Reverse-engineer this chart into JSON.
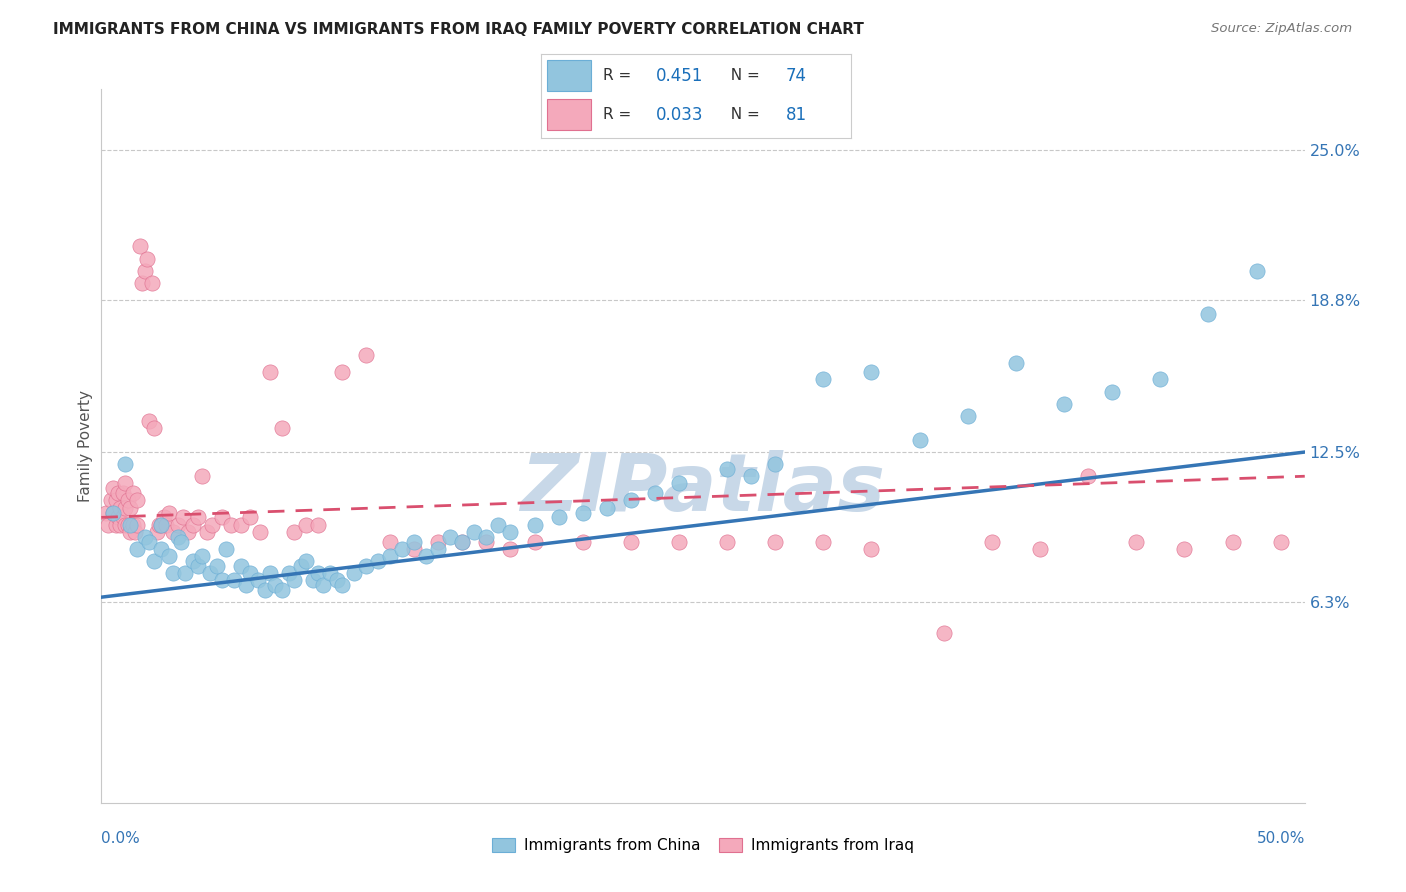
{
  "title": "IMMIGRANTS FROM CHINA VS IMMIGRANTS FROM IRAQ FAMILY POVERTY CORRELATION CHART",
  "source": "Source: ZipAtlas.com",
  "ylabel": "Family Poverty",
  "ytick_vals": [
    0.0,
    0.063,
    0.125,
    0.188,
    0.25
  ],
  "ytick_labels": [
    "",
    "6.3%",
    "12.5%",
    "18.8%",
    "25.0%"
  ],
  "xmin": 0.0,
  "xmax": 0.5,
  "ymin": -0.02,
  "ymax": 0.275,
  "china_R": 0.451,
  "china_N": 74,
  "iraq_R": 0.033,
  "iraq_N": 81,
  "china_color": "#92c5de",
  "iraq_color": "#f4a9bb",
  "china_edge_color": "#6baed6",
  "iraq_edge_color": "#e07090",
  "china_line_color": "#3575b5",
  "iraq_line_color": "#d94f6e",
  "watermark_color": "#c8d8e8",
  "legend_text_color": "#1a6fba",
  "legend_label_color": "#333333",
  "right_tick_color": "#3575b5",
  "china_scatter_x": [
    0.005,
    0.01,
    0.012,
    0.015,
    0.018,
    0.02,
    0.022,
    0.025,
    0.025,
    0.028,
    0.03,
    0.032,
    0.033,
    0.035,
    0.038,
    0.04,
    0.042,
    0.045,
    0.048,
    0.05,
    0.052,
    0.055,
    0.058,
    0.06,
    0.062,
    0.065,
    0.068,
    0.07,
    0.072,
    0.075,
    0.078,
    0.08,
    0.083,
    0.085,
    0.088,
    0.09,
    0.092,
    0.095,
    0.098,
    0.1,
    0.105,
    0.11,
    0.115,
    0.12,
    0.125,
    0.13,
    0.135,
    0.14,
    0.145,
    0.15,
    0.155,
    0.16,
    0.165,
    0.17,
    0.18,
    0.19,
    0.2,
    0.21,
    0.22,
    0.23,
    0.24,
    0.26,
    0.27,
    0.28,
    0.3,
    0.32,
    0.34,
    0.36,
    0.38,
    0.4,
    0.42,
    0.44,
    0.46,
    0.48
  ],
  "china_scatter_y": [
    0.1,
    0.12,
    0.095,
    0.085,
    0.09,
    0.088,
    0.08,
    0.095,
    0.085,
    0.082,
    0.075,
    0.09,
    0.088,
    0.075,
    0.08,
    0.078,
    0.082,
    0.075,
    0.078,
    0.072,
    0.085,
    0.072,
    0.078,
    0.07,
    0.075,
    0.072,
    0.068,
    0.075,
    0.07,
    0.068,
    0.075,
    0.072,
    0.078,
    0.08,
    0.072,
    0.075,
    0.07,
    0.075,
    0.072,
    0.07,
    0.075,
    0.078,
    0.08,
    0.082,
    0.085,
    0.088,
    0.082,
    0.085,
    0.09,
    0.088,
    0.092,
    0.09,
    0.095,
    0.092,
    0.095,
    0.098,
    0.1,
    0.102,
    0.105,
    0.108,
    0.112,
    0.118,
    0.115,
    0.12,
    0.155,
    0.158,
    0.13,
    0.14,
    0.162,
    0.145,
    0.15,
    0.155,
    0.182,
    0.2
  ],
  "iraq_scatter_x": [
    0.002,
    0.003,
    0.004,
    0.005,
    0.005,
    0.006,
    0.006,
    0.007,
    0.007,
    0.008,
    0.008,
    0.009,
    0.009,
    0.01,
    0.01,
    0.01,
    0.011,
    0.011,
    0.012,
    0.012,
    0.013,
    0.013,
    0.014,
    0.015,
    0.015,
    0.016,
    0.017,
    0.018,
    0.019,
    0.02,
    0.021,
    0.022,
    0.023,
    0.024,
    0.025,
    0.026,
    0.027,
    0.028,
    0.03,
    0.032,
    0.034,
    0.036,
    0.038,
    0.04,
    0.042,
    0.044,
    0.046,
    0.05,
    0.054,
    0.058,
    0.062,
    0.066,
    0.07,
    0.075,
    0.08,
    0.085,
    0.09,
    0.1,
    0.11,
    0.12,
    0.13,
    0.14,
    0.15,
    0.16,
    0.17,
    0.18,
    0.2,
    0.22,
    0.24,
    0.26,
    0.28,
    0.3,
    0.32,
    0.35,
    0.37,
    0.39,
    0.41,
    0.43,
    0.45,
    0.47,
    0.49
  ],
  "iraq_scatter_y": [
    0.1,
    0.095,
    0.105,
    0.1,
    0.11,
    0.095,
    0.105,
    0.098,
    0.108,
    0.095,
    0.102,
    0.098,
    0.108,
    0.095,
    0.102,
    0.112,
    0.095,
    0.105,
    0.092,
    0.102,
    0.095,
    0.108,
    0.092,
    0.095,
    0.105,
    0.21,
    0.195,
    0.2,
    0.205,
    0.138,
    0.195,
    0.135,
    0.092,
    0.095,
    0.095,
    0.098,
    0.095,
    0.1,
    0.092,
    0.095,
    0.098,
    0.092,
    0.095,
    0.098,
    0.115,
    0.092,
    0.095,
    0.098,
    0.095,
    0.095,
    0.098,
    0.092,
    0.158,
    0.135,
    0.092,
    0.095,
    0.095,
    0.158,
    0.165,
    0.088,
    0.085,
    0.088,
    0.088,
    0.088,
    0.085,
    0.088,
    0.088,
    0.088,
    0.088,
    0.088,
    0.088,
    0.088,
    0.085,
    0.05,
    0.088,
    0.085,
    0.115,
    0.088,
    0.085,
    0.088,
    0.088
  ]
}
